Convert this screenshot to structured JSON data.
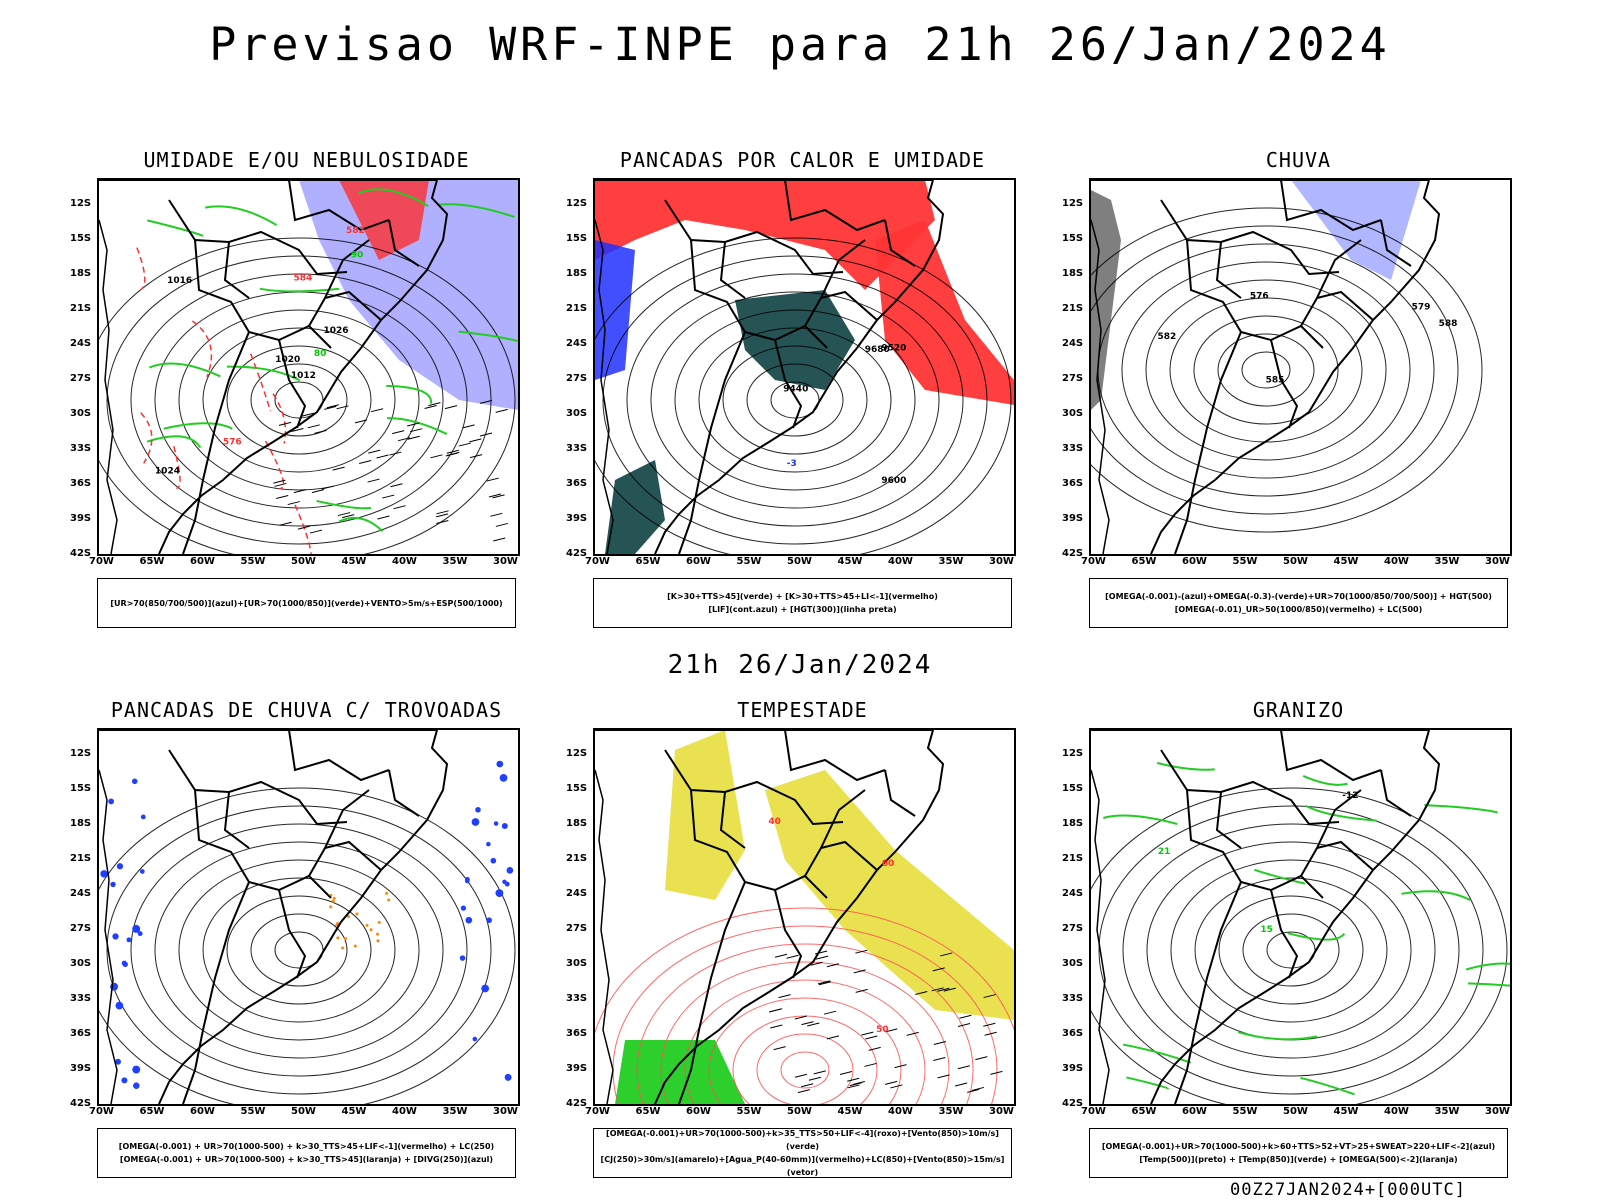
{
  "title": "Previsao WRF-INPE  para 21h 26/Jan/2024",
  "subtitle": "21h 26/Jan/2024",
  "footer": "00Z27JAN2024+[000UTC]",
  "lat_labels": [
    "12S",
    "15S",
    "18S",
    "21S",
    "24S",
    "27S",
    "30S",
    "33S",
    "36S",
    "39S",
    "42S"
  ],
  "lon_labels": [
    "70W",
    "65W",
    "60W",
    "55W",
    "50W",
    "45W",
    "40W",
    "35W",
    "30W"
  ],
  "panels": [
    {
      "title": "UMIDADE E/OU NEBULOSIDADE",
      "legend": [
        "[UR>70(850/700/500)](azul)+[UR>70(1000/850)](verde)+VENTO>5m/s+ESP(500/1000)"
      ],
      "labels": [
        {
          "t": "1012",
          "c": "#000"
        },
        {
          "t": "1016",
          "c": "#000"
        },
        {
          "t": "1020",
          "c": "#000"
        },
        {
          "t": "1024",
          "c": "#000"
        },
        {
          "t": "1026",
          "c": "#000"
        },
        {
          "t": "576",
          "c": "#ff3030"
        },
        {
          "t": "582",
          "c": "#ff3030"
        },
        {
          "t": "584",
          "c": "#ff3030"
        },
        {
          "t": "90",
          "c": "#00cc00"
        },
        {
          "t": "80",
          "c": "#00cc00"
        }
      ]
    },
    {
      "title": "PANCADAS POR CALOR E UMIDADE",
      "legend": [
        "[K>30+TTS>45](verde) + [K>30+TTS>45+LI<-1](vermelho)",
        "[LIF](cont.azul) + [HGT(300)](linha preta)"
      ],
      "labels": [
        {
          "t": "9680",
          "c": "#000"
        },
        {
          "t": "9600",
          "c": "#000"
        },
        {
          "t": "9520",
          "c": "#000"
        },
        {
          "t": "9440",
          "c": "#000"
        },
        {
          "t": "-3",
          "c": "#2030ff"
        }
      ]
    },
    {
      "title": "CHUVA",
      "legend": [
        "[OMEGA(-0.001)-(azul)+OMEGA(-0.3)-(verde)+UR>70(1000/850/700/500)] + HGT(500)",
        "[OMEGA(-0.01)_UR>50(1000/850)(vermelho) + LC(500)"
      ],
      "labels": [
        {
          "t": "588",
          "c": "#000"
        },
        {
          "t": "585",
          "c": "#000"
        },
        {
          "t": "582",
          "c": "#000"
        },
        {
          "t": "579",
          "c": "#000"
        },
        {
          "t": "576",
          "c": "#000"
        }
      ]
    },
    {
      "title": "PANCADAS DE CHUVA C/ TROVOADAS",
      "legend": [
        "[OMEGA(-0.001) + UR>70(1000-500) + k>30_TTS>45+LIF<-1](vermelho) + LC(250)",
        "[OMEGA(-0.001) + UR>70(1000-500) + k>30_TTS>45](laranja) + [DIVG(250)](azul)"
      ],
      "labels": []
    },
    {
      "title": "TEMPESTADE",
      "legend": [
        "[OMEGA(-0.001)+UR>70(1000-500)+k>35_TTS>50+LIF<-4](roxo)+[Vento(850)>10m/s](verde)",
        "[CJ(250)>30m/s](amarelo)+[Agua_P(40-60mm)](vermelho)+LC(850)+[Vento(850)>15m/s](vetor)"
      ],
      "labels": [
        {
          "t": "40",
          "c": "#ff3030"
        },
        {
          "t": "50",
          "c": "#ff3030"
        },
        {
          "t": "60",
          "c": "#ff3030"
        }
      ]
    },
    {
      "title": "GRANIZO",
      "legend": [
        "[OMEGA(-0.001)+UR>70(1000-500)+k>60+TTS>52+VT>25+SWEAT>220+LIF<-2](azul)",
        "[Temp(500)](preto) + [Temp(850)](verde) + [OMEGA(500)<-2](laranja)"
      ],
      "labels": [
        {
          "t": "-12",
          "c": "#000"
        },
        {
          "t": "15",
          "c": "#00cc00"
        },
        {
          "t": "21",
          "c": "#00cc00"
        }
      ]
    }
  ]
}
